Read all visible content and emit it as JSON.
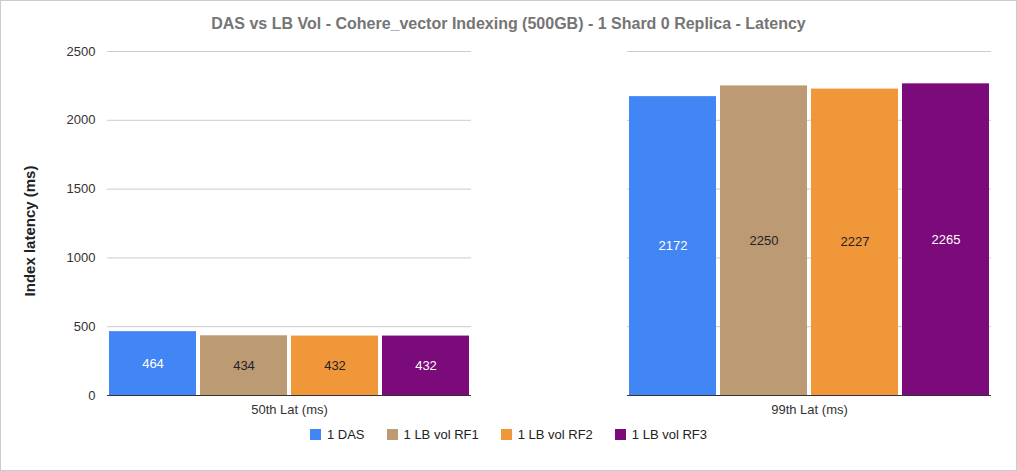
{
  "chart_data": {
    "type": "bar",
    "title": "DAS vs LB Vol - Cohere_vector Indexing (500GB) - 1 Shard 0 Replica - Latency",
    "y_label": "Index latency (ms)",
    "categories": [
      "50th Lat (ms)",
      "99th Lat (ms)"
    ],
    "series": [
      {
        "name": "1 DAS",
        "color": "#4285f4",
        "values": [
          464,
          2172
        ]
      },
      {
        "name": "1 LB vol RF1",
        "color": "#bc9a74",
        "values": [
          434,
          2250
        ]
      },
      {
        "name": "1 LB vol RF2",
        "color": "#f0973a",
        "values": [
          432,
          2227
        ]
      },
      {
        "name": "1 LB vol RF3",
        "color": "#7b0a7a",
        "values": [
          432,
          2265
        ]
      }
    ],
    "ylim": [
      0,
      2500
    ],
    "yticks": [
      0,
      500,
      1000,
      1500,
      2000,
      2500
    ],
    "grid": true,
    "data_labels": true,
    "legend": "bottom"
  }
}
